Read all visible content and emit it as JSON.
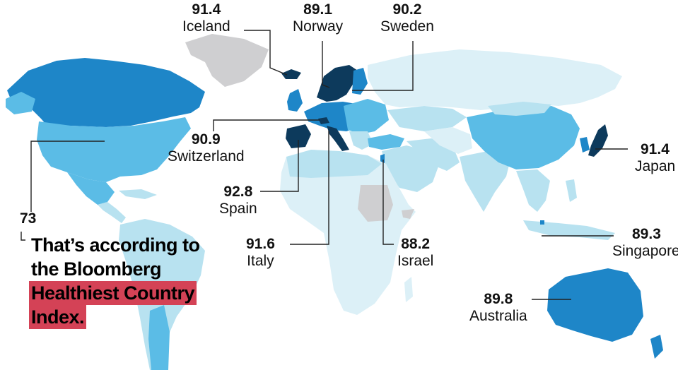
{
  "colors": {
    "ocean": "#ffffff",
    "no_data": "#cfcfd1",
    "tier_lowest": "#dcf0f7",
    "tier_low": "#b8e2f0",
    "tier_mid": "#5bbce6",
    "tier_high": "#1e86c8",
    "tier_top": "#0d3a5c",
    "caption_highlight": "#d44256"
  },
  "labels": [
    {
      "id": "iceland",
      "score": "91.4",
      "name": "Iceland"
    },
    {
      "id": "norway",
      "score": "89.1",
      "name": "Norway"
    },
    {
      "id": "sweden",
      "score": "90.2",
      "name": "Sweden"
    },
    {
      "id": "switzerland",
      "score": "90.9",
      "name": "Switzerland"
    },
    {
      "id": "spain",
      "score": "92.8",
      "name": "Spain"
    },
    {
      "id": "italy",
      "score": "91.6",
      "name": "Italy"
    },
    {
      "id": "israel",
      "score": "88.2",
      "name": "Israel"
    },
    {
      "id": "japan",
      "score": "91.4",
      "name": "Japan"
    },
    {
      "id": "singapore",
      "score": "89.3",
      "name": "Singapore"
    },
    {
      "id": "australia",
      "score": "89.8",
      "name": "Australia"
    },
    {
      "id": "usa",
      "score": "73",
      "name": ""
    }
  ],
  "caption": {
    "line1": "That’s according to",
    "line2": "the Bloomberg",
    "highlight1": "Healthiest Country",
    "highlight2": "Index."
  }
}
